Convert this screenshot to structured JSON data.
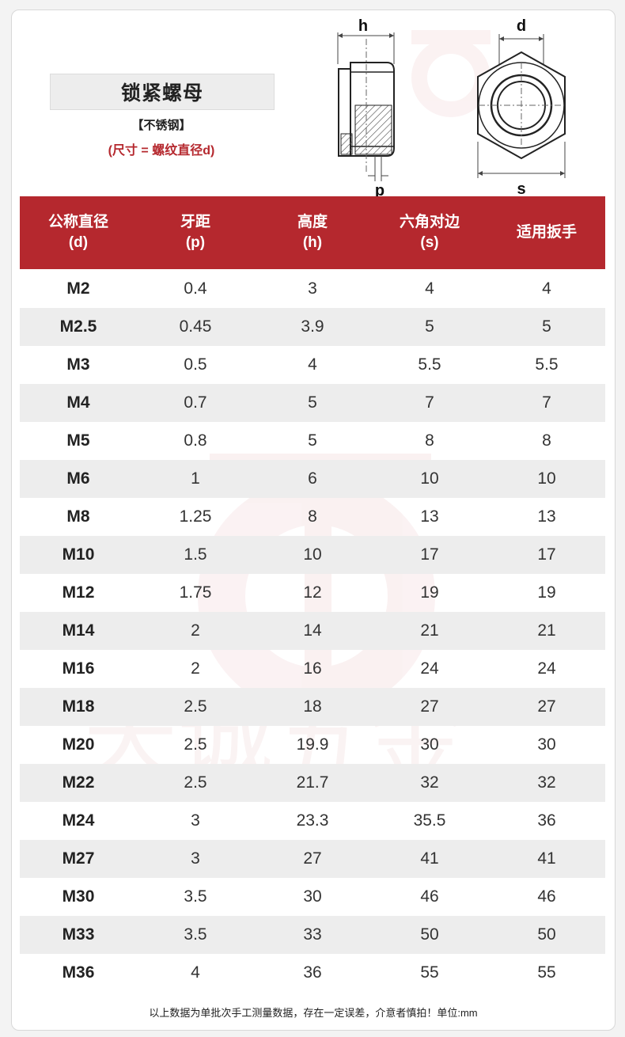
{
  "title": "锁紧螺母",
  "material": "【不锈钢】",
  "size_note": "(尺寸 = 螺纹直径d)",
  "diagram_labels": {
    "h": "h",
    "p": "p",
    "d": "d",
    "s": "s"
  },
  "watermark_text": "天诚五金",
  "colors": {
    "accent": "#b5282e",
    "row_alt": "#ededed"
  },
  "table": {
    "headers": [
      {
        "line1": "公称直径",
        "line2": "(d)"
      },
      {
        "line1": "牙距",
        "line2": "(p)"
      },
      {
        "line1": "高度",
        "line2": "(h)"
      },
      {
        "line1": "六角对边",
        "line2": "(s)"
      },
      {
        "line1": "适用扳手",
        "line2": ""
      }
    ],
    "rows": [
      [
        "M2",
        "0.4",
        "3",
        "4",
        "4"
      ],
      [
        "M2.5",
        "0.45",
        "3.9",
        "5",
        "5"
      ],
      [
        "M3",
        "0.5",
        "4",
        "5.5",
        "5.5"
      ],
      [
        "M4",
        "0.7",
        "5",
        "7",
        "7"
      ],
      [
        "M5",
        "0.8",
        "5",
        "8",
        "8"
      ],
      [
        "M6",
        "1",
        "6",
        "10",
        "10"
      ],
      [
        "M8",
        "1.25",
        "8",
        "13",
        "13"
      ],
      [
        "M10",
        "1.5",
        "10",
        "17",
        "17"
      ],
      [
        "M12",
        "1.75",
        "12",
        "19",
        "19"
      ],
      [
        "M14",
        "2",
        "14",
        "21",
        "21"
      ],
      [
        "M16",
        "2",
        "16",
        "24",
        "24"
      ],
      [
        "M18",
        "2.5",
        "18",
        "27",
        "27"
      ],
      [
        "M20",
        "2.5",
        "19.9",
        "30",
        "30"
      ],
      [
        "M22",
        "2.5",
        "21.7",
        "32",
        "32"
      ],
      [
        "M24",
        "3",
        "23.3",
        "35.5",
        "36"
      ],
      [
        "M27",
        "3",
        "27",
        "41",
        "41"
      ],
      [
        "M30",
        "3.5",
        "30",
        "46",
        "46"
      ],
      [
        "M33",
        "3.5",
        "33",
        "50",
        "50"
      ],
      [
        "M36",
        "4",
        "36",
        "55",
        "55"
      ]
    ]
  },
  "footer": "以上数据为单批次手工测量数据，存在一定误差，介意者慎拍！单位:mm"
}
